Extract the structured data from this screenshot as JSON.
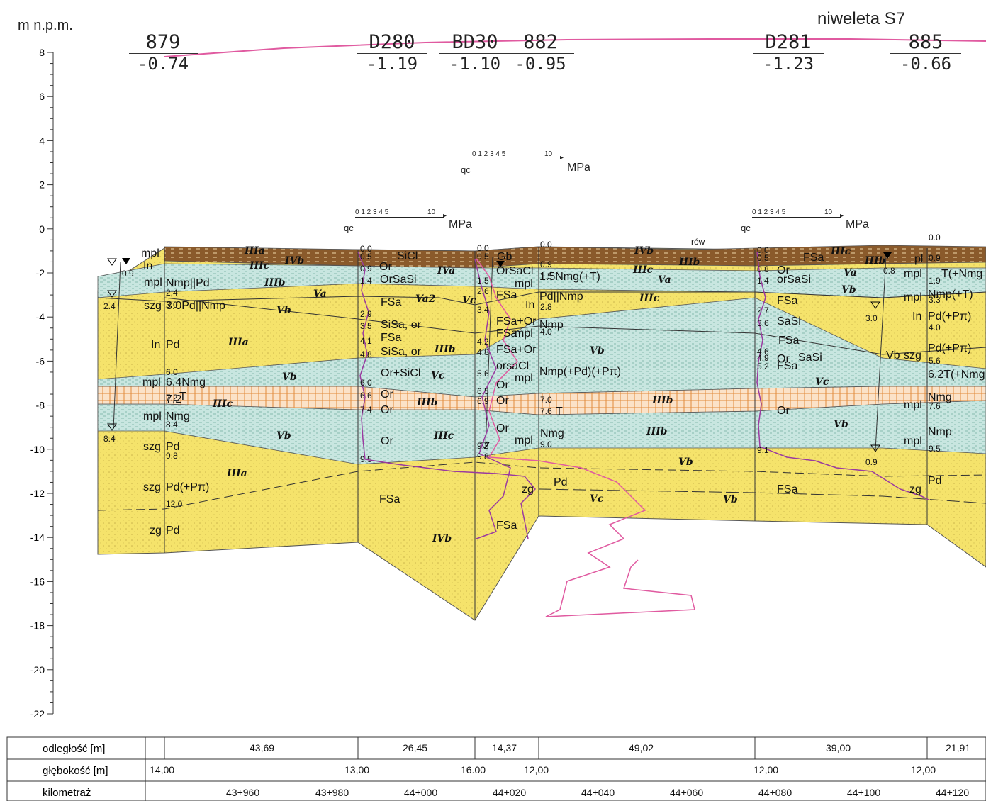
{
  "header": {
    "unit_label": "m n.p.m.",
    "alignment_label": "niweleta S7"
  },
  "y_axis": {
    "ticks": [
      8,
      6,
      4,
      2,
      0,
      -2,
      -4,
      -6,
      -8,
      -10,
      -12,
      -14,
      -16,
      -18,
      -20,
      -22
    ],
    "labels": [
      "8",
      "6",
      "4",
      "2",
      "0",
      "-2",
      "-4",
      "-6",
      "-8",
      "-10",
      "-12",
      "-14",
      "-16",
      "-18",
      "-20",
      "-22"
    ]
  },
  "boreholes": [
    {
      "id": "879",
      "elev": "-0.74"
    },
    {
      "id": "D280",
      "elev": "-1.19"
    },
    {
      "id": "BD30",
      "elev": "-1.10"
    },
    {
      "id": "882",
      "elev": "-0.95"
    },
    {
      "id": "D281",
      "elev": "-1.23"
    },
    {
      "id": "885",
      "elev": "-0.66"
    }
  ],
  "cpt_scales": [
    {
      "label": "qc",
      "ticks": "0 1 2 3 4 5",
      "max": "10",
      "unit": "MPa"
    },
    {
      "label": "qc",
      "ticks": "0 1 2 3 4 5",
      "max": "10",
      "unit": "MPa"
    },
    {
      "label": "qc",
      "ticks": "0 1 2 3 4 5",
      "max": "10",
      "unit": "MPa"
    }
  ],
  "layer_codes": [
    "IIIa",
    "IIIc",
    "IVb",
    "IVa",
    "IIIb",
    "Va",
    "Vb",
    "Va2",
    "Vc",
    "IIIa",
    "IVb",
    "IIIc",
    "IIIb",
    "Va",
    "Vb",
    "Vc",
    "Vb",
    "IIIa",
    "IVb",
    "IIIc",
    "IIIb",
    "Va",
    "Vb",
    "IIIc",
    "IIIb",
    "Vb",
    "Vc",
    "Vb",
    "IIIb",
    "IIIc",
    "IIIb",
    "IIIc",
    "IIIb",
    "Vb",
    "Vb",
    "Vc"
  ],
  "soil_labels": {
    "b879": [
      "mpl",
      "In",
      "mpl",
      "Nmp||Pd",
      "szg",
      "3.0Pd||Nmp",
      "In",
      "Pd",
      "mpl",
      "6.4Nmg",
      "7.2",
      "T",
      "mpl",
      "Nmg",
      "szg",
      "Pd",
      "szg",
      "Pd(+Pπ)",
      "zg",
      "Pd"
    ],
    "bD280": [
      "SiCl",
      "Or",
      "OrSaSi",
      "FSa",
      "SiSa, or",
      "FSa",
      "SiSa, or",
      "Or+SiCl",
      "Or",
      "Or",
      "Or",
      "FSa"
    ],
    "bBD30": [
      "Gb",
      "OrSaCl",
      "mpl",
      "FSa",
      "In",
      "FSa+Or",
      "FSa",
      "mpl",
      "FSa+Or",
      "orsaCl",
      "mpl",
      "Or",
      "Or",
      "Or",
      "mpl",
      "zg",
      "FSa"
    ],
    "b882": [
      "1.5Nmg(+T)",
      "Pd||Nmp",
      "Nmp",
      "Nmp(+Pd)(+Pπ)",
      "T",
      "Nmg",
      "Pd"
    ],
    "bD281": [
      "FSa",
      "Or",
      "orSaSi",
      "FSa",
      "SaSi",
      "FSa",
      "Or",
      "SaSi",
      "FSa",
      "Or",
      "FSa"
    ],
    "b885": [
      "pl",
      "mpl",
      "T(+Nmg",
      "mpl",
      "Nmp(+T)",
      "In",
      "Pd(+Pπ)",
      "Vb",
      "szg",
      "Pd(+Pπ)",
      "6.2T(+Nmg",
      "mpl",
      "Nmg",
      "mpl",
      "Nmp",
      "zg",
      "Pd"
    ],
    "misc": [
      "rów"
    ]
  },
  "depth_marks": [
    "0.9",
    "2.4",
    "8.4",
    "2.4",
    "3.0",
    "6.0",
    "7.2",
    "8.4",
    "9.8",
    "12.0",
    "0.0",
    "0.5",
    "0.9",
    "1.4",
    "2.9",
    "3.5",
    "4.1",
    "4.8",
    "6.0",
    "6.6",
    "7.4",
    "9.5",
    "0.0",
    "0.5",
    "1.5",
    "2.6",
    "3.4",
    "4.2",
    "4.8",
    "5.6",
    "6.5",
    "6.9",
    "9.3",
    "9.8",
    "0.0",
    "0.9",
    "1.5",
    "2.8",
    "4.0",
    "7.0",
    "7.6",
    "9.0",
    "0.0",
    "0.5",
    "0.8",
    "1.4",
    "2.7",
    "3.6",
    "4.6",
    "4.9",
    "5.2",
    "9.1",
    "0.8",
    "3.0",
    "0.9",
    "0.0",
    "0.9",
    "1.9",
    "3.3",
    "4.0",
    "5.6",
    "7.6",
    "9.5"
  ],
  "bottom_table": {
    "rows": [
      {
        "label": "odległość [m]",
        "values": [
          "43,69",
          "26,45",
          "14,37",
          "49,02",
          "39,00",
          "21,91"
        ]
      },
      {
        "label": "głębokość [m]",
        "values": [
          "14,00",
          "13,00",
          "16.00",
          "12,00",
          "12,00",
          "12,00"
        ]
      },
      {
        "label": "kilometraż",
        "values": [
          "43+960",
          "43+980",
          "44+000",
          "44+020",
          "44+040",
          "44+060",
          "44+080",
          "44+100",
          "44+120"
        ]
      }
    ]
  },
  "colors": {
    "sand": "#f5e36b",
    "silt": "#c8e6e0",
    "peat": "#e9b07a",
    "organic": "#8a5a2b",
    "grade_line": "#e05aa0",
    "cpt_line": "#9a3aa0"
  }
}
